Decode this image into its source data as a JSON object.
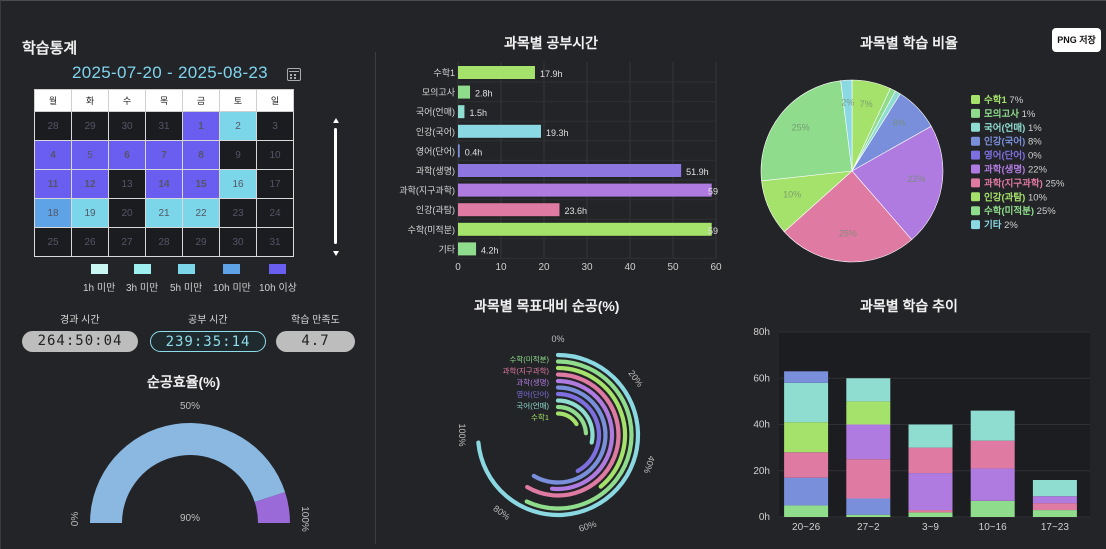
{
  "left": {
    "title": "학습통계",
    "date_range": "2025-07-20 - 2025-08-23",
    "calendar": {
      "weekdays": [
        "월",
        "화",
        "수",
        "목",
        "금",
        "토",
        "일"
      ],
      "rows": [
        [
          {
            "d": "28",
            "l": "l0"
          },
          {
            "d": "29",
            "l": "l0"
          },
          {
            "d": "30",
            "l": "l0"
          },
          {
            "d": "31",
            "l": "l0"
          },
          {
            "d": "1",
            "l": "l4"
          },
          {
            "d": "2",
            "l": "l2"
          },
          {
            "d": "3",
            "l": "l0c"
          }
        ],
        [
          {
            "d": "4",
            "l": "l4"
          },
          {
            "d": "5",
            "l": "l4b"
          },
          {
            "d": "6",
            "l": "l4"
          },
          {
            "d": "7",
            "l": "l4"
          },
          {
            "d": "8",
            "l": "l4"
          },
          {
            "d": "9",
            "l": "l0c"
          },
          {
            "d": "10",
            "l": "l0c"
          }
        ],
        [
          {
            "d": "11",
            "l": "l4"
          },
          {
            "d": "12",
            "l": "l4"
          },
          {
            "d": "13",
            "l": "l0c"
          },
          {
            "d": "14",
            "l": "l4"
          },
          {
            "d": "15",
            "l": "l4"
          },
          {
            "d": "16",
            "l": "l2"
          },
          {
            "d": "17",
            "l": "l0c"
          }
        ],
        [
          {
            "d": "18",
            "l": "l3"
          },
          {
            "d": "19",
            "l": "l2"
          },
          {
            "d": "20",
            "l": "l0c"
          },
          {
            "d": "21",
            "l": "l2"
          },
          {
            "d": "22",
            "l": "l2"
          },
          {
            "d": "23",
            "l": "l0c"
          },
          {
            "d": "24",
            "l": "l0c"
          }
        ],
        [
          {
            "d": "25",
            "l": "l0c"
          },
          {
            "d": "26",
            "l": "l0c"
          },
          {
            "d": "27",
            "l": "l0c"
          },
          {
            "d": "28",
            "l": "l0c"
          },
          {
            "d": "29",
            "l": "l0c"
          },
          {
            "d": "30",
            "l": "l0c"
          },
          {
            "d": "31",
            "l": "l0c"
          }
        ]
      ]
    },
    "legend": [
      {
        "label": "1h 미만",
        "color": "#c9f6f3"
      },
      {
        "label": "3h 미만",
        "color": "#9ef0f0"
      },
      {
        "label": "5h 미만",
        "color": "#7ad6e8"
      },
      {
        "label": "10h 미만",
        "color": "#5ea3e6"
      },
      {
        "label": "10h 이상",
        "color": "#6a5ef0"
      }
    ],
    "stats": {
      "elapsed_label": "경과 시간",
      "elapsed_value": "264:50:04",
      "study_label": "공부 시간",
      "study_value": "239:35:14",
      "satisfaction_label": "학습 만족도",
      "satisfaction_value": "4.7"
    },
    "efficiency_title": "순공효율(%)"
  },
  "png_button": "PNG 저장",
  "charts": {
    "time": {
      "title": "과목별 공부시간"
    },
    "ratio": {
      "title": "과목별 학습 비율"
    },
    "goal": {
      "title": "과목별 목표대비 순공(%)"
    },
    "trend": {
      "title": "과목별 학습 추이"
    }
  },
  "chart_data": [
    {
      "id": "time",
      "type": "bar",
      "orientation": "horizontal",
      "title": "과목별 공부시간",
      "categories": [
        "수학1",
        "모의고사",
        "국어(언매)",
        "인강(국어)",
        "영어(단어)",
        "과학(생명)",
        "과학(지구과학)",
        "인강(과탐)",
        "수학(미적분)",
        "기타"
      ],
      "values": [
        17.9,
        2.8,
        1.5,
        19.3,
        0.4,
        51.9,
        59,
        23.6,
        59,
        4.2
      ],
      "data_labels": [
        "17.9h",
        "2.8h",
        "1.5h",
        "19.3h",
        "0.4h",
        "51.9h",
        "59",
        "23.6h",
        "59",
        "4.2h"
      ],
      "colors": [
        "#a5e26b",
        "#8fdc8c",
        "#8fdcd0",
        "#8ad8e2",
        "#7d8fdc",
        "#8e76e0",
        "#b07be0",
        "#df7aa2",
        "#a5e26b",
        "#8fdc8c"
      ],
      "xlim": [
        0,
        60
      ],
      "xticks": [
        0,
        10,
        20,
        30,
        40,
        50,
        60
      ],
      "grid": true
    },
    {
      "id": "ratio",
      "type": "pie",
      "title": "과목별 학습 비율",
      "labels": [
        "수학1",
        "모의고사",
        "국어(언매)",
        "인강(국어)",
        "영어(단어)",
        "과학(생명)",
        "과학(지구과학)",
        "인강(과탐)",
        "수학(미적분)",
        "기타"
      ],
      "values": [
        7,
        1,
        1,
        8,
        0,
        22,
        25,
        10,
        25,
        2
      ],
      "legend_text": [
        "수학1 7%",
        "모의고사 1%",
        "국어(언매) 1%",
        "인강(국어) 8%",
        "영어(단어) 0%",
        "과학(생명) 22%",
        "과학(지구과학) 25%",
        "인강(과탐) 10%",
        "수학(미적분) 25%",
        "기타 2%"
      ],
      "legend_colors": [
        "#a5e26b",
        "#8fdc8c",
        "#8fdcd0",
        "#7a8fdc",
        "#7d6fe0",
        "#b07be0",
        "#df7aa2",
        "#a5e26b",
        "#8fdc8c",
        "#8ad8e2"
      ],
      "slice_colors": [
        "#a5e26b",
        "#8fdc8c",
        "#8fdcd0",
        "#7a8fdc",
        "#7d6fe0",
        "#b07be0",
        "#df7aa2",
        "#a5e26b",
        "#8fdc8c",
        "#8ad8e2"
      ],
      "slice_labels": [
        "7%",
        "",
        "",
        "8%",
        "",
        "22%",
        "25%",
        "10%",
        "25%",
        "2%"
      ],
      "legend": "right"
    },
    {
      "id": "goal",
      "type": "radial-bar",
      "title": "과목별 목표대비 순공(%)",
      "labels": [
        "수학(미적분)",
        "과학(지구과학)",
        "과학(생명)",
        "영어(단어)",
        "국어(언매)",
        "수학1"
      ],
      "label_colors": [
        "#8fdc8c",
        "#df7aa2",
        "#b07be0",
        "#7d6fe0",
        "#8fdcd0",
        "#a5e26b"
      ],
      "rings": [
        {
          "color": "#8ad8e2",
          "value": 98
        },
        {
          "color": "#8fdc8c",
          "value": 76
        },
        {
          "color": "#a5e26b",
          "value": 52
        },
        {
          "color": "#df7aa2",
          "value": 78
        },
        {
          "color": "#b07be0",
          "value": 69
        },
        {
          "color": "#7a8fdc",
          "value": 78
        },
        {
          "color": "#7d6fe0",
          "value": 56
        },
        {
          "color": "#8fdcd0",
          "value": 38
        },
        {
          "color": "#8fdc8c",
          "value": 32
        },
        {
          "color": "#a5e26b",
          "value": 22
        }
      ],
      "ticks": [
        {
          "v": 0,
          "label": "0%"
        },
        {
          "v": 20,
          "label": "20%"
        },
        {
          "v": 40,
          "label": "40%"
        },
        {
          "v": 60,
          "label": "60%"
        },
        {
          "v": 80,
          "label": "80%"
        },
        {
          "v": 100,
          "label": "100%"
        }
      ]
    },
    {
      "id": "trend",
      "type": "bar",
      "stacked": true,
      "title": "과목별 학습 추이",
      "categories": [
        "20~26",
        "27~2",
        "3~9",
        "10~16",
        "17~23"
      ],
      "series": [
        {
          "color": "#8fdc8c",
          "values": [
            5,
            1,
            2,
            7,
            3
          ]
        },
        {
          "color": "#7a8fdc",
          "values": [
            12,
            7,
            0,
            0,
            0
          ]
        },
        {
          "color": "#df7aa2",
          "values": [
            11,
            17,
            1,
            0,
            3
          ]
        },
        {
          "color": "#b07be0",
          "values": [
            0,
            15,
            16,
            14,
            3
          ]
        },
        {
          "color": "#df7aa2",
          "values": [
            0,
            0,
            11,
            12,
            0
          ]
        },
        {
          "color": "#a5e26b",
          "values": [
            13,
            10,
            0,
            0,
            0
          ]
        },
        {
          "color": "#8fdcd0",
          "values": [
            17,
            10,
            10,
            13,
            7
          ]
        },
        {
          "color": "#7a8fdc",
          "values": [
            5,
            0,
            0,
            0,
            0
          ]
        }
      ],
      "ylim": [
        0,
        80
      ],
      "yticks": [
        "0h",
        "20h",
        "40h",
        "60h",
        "80h"
      ],
      "yvalues": [
        0,
        20,
        40,
        60,
        80
      ]
    },
    {
      "id": "efficiency",
      "type": "gauge",
      "title": "순공효율(%)",
      "value": 90,
      "value_label": "90%",
      "min_label": "0%",
      "mid_label": "50%",
      "max_label": "100%",
      "colors": {
        "fill": "#8ab8e0",
        "rest": "#9a6ad8"
      }
    }
  ]
}
